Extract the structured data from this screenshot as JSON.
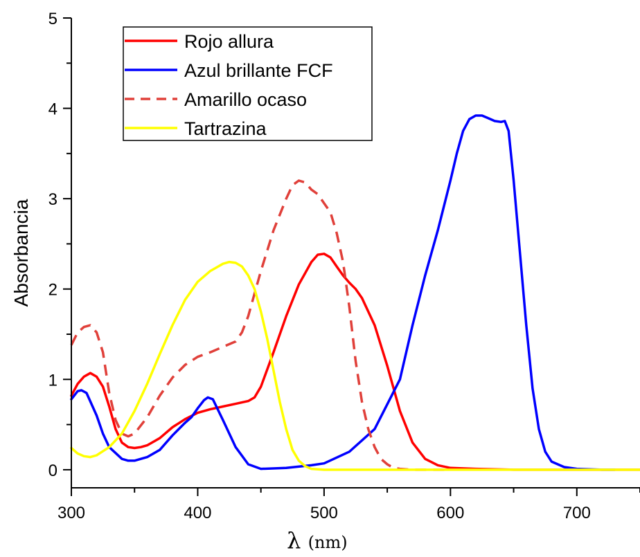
{
  "chart_data": {
    "type": "line",
    "title": "",
    "xlabel": "λ",
    "xlabel_unit": "(nm)",
    "ylabel": "Absorbancia",
    "xlim": [
      300,
      750
    ],
    "ylim": [
      -0.2,
      5
    ],
    "xticks": [
      300,
      400,
      500,
      600,
      700
    ],
    "yticks": [
      0,
      1,
      2,
      3,
      4,
      5
    ],
    "grid": false,
    "legend_position": "top-left",
    "series": [
      {
        "name": "Rojo allura",
        "color": "#ff0000",
        "dash": "solid",
        "points": [
          [
            300,
            0.82
          ],
          [
            305,
            0.95
          ],
          [
            310,
            1.03
          ],
          [
            315,
            1.07
          ],
          [
            320,
            1.03
          ],
          [
            325,
            0.92
          ],
          [
            330,
            0.7
          ],
          [
            335,
            0.45
          ],
          [
            340,
            0.3
          ],
          [
            345,
            0.25
          ],
          [
            350,
            0.24
          ],
          [
            355,
            0.25
          ],
          [
            360,
            0.27
          ],
          [
            370,
            0.35
          ],
          [
            380,
            0.47
          ],
          [
            390,
            0.56
          ],
          [
            400,
            0.63
          ],
          [
            410,
            0.67
          ],
          [
            420,
            0.7
          ],
          [
            430,
            0.73
          ],
          [
            440,
            0.76
          ],
          [
            445,
            0.8
          ],
          [
            450,
            0.92
          ],
          [
            460,
            1.3
          ],
          [
            470,
            1.7
          ],
          [
            480,
            2.05
          ],
          [
            490,
            2.3
          ],
          [
            495,
            2.38
          ],
          [
            500,
            2.39
          ],
          [
            505,
            2.35
          ],
          [
            510,
            2.25
          ],
          [
            515,
            2.15
          ],
          [
            520,
            2.07
          ],
          [
            525,
            2.0
          ],
          [
            530,
            1.9
          ],
          [
            540,
            1.6
          ],
          [
            550,
            1.15
          ],
          [
            560,
            0.65
          ],
          [
            570,
            0.3
          ],
          [
            580,
            0.12
          ],
          [
            590,
            0.05
          ],
          [
            600,
            0.02
          ],
          [
            620,
            0.01
          ],
          [
            650,
            0.0
          ],
          [
            750,
            0.0
          ]
        ]
      },
      {
        "name": "Azul brillante FCF",
        "color": "#0000ff",
        "dash": "solid",
        "points": [
          [
            300,
            0.78
          ],
          [
            305,
            0.87
          ],
          [
            308,
            0.88
          ],
          [
            312,
            0.85
          ],
          [
            320,
            0.6
          ],
          [
            325,
            0.4
          ],
          [
            330,
            0.25
          ],
          [
            340,
            0.12
          ],
          [
            345,
            0.1
          ],
          [
            350,
            0.1
          ],
          [
            360,
            0.14
          ],
          [
            370,
            0.22
          ],
          [
            380,
            0.38
          ],
          [
            390,
            0.52
          ],
          [
            395,
            0.58
          ],
          [
            400,
            0.68
          ],
          [
            405,
            0.77
          ],
          [
            408,
            0.8
          ],
          [
            412,
            0.78
          ],
          [
            420,
            0.55
          ],
          [
            430,
            0.25
          ],
          [
            440,
            0.06
          ],
          [
            450,
            0.01
          ],
          [
            470,
            0.02
          ],
          [
            490,
            0.05
          ],
          [
            500,
            0.07
          ],
          [
            520,
            0.2
          ],
          [
            540,
            0.45
          ],
          [
            560,
            1.0
          ],
          [
            570,
            1.6
          ],
          [
            580,
            2.15
          ],
          [
            590,
            2.65
          ],
          [
            600,
            3.2
          ],
          [
            605,
            3.5
          ],
          [
            610,
            3.75
          ],
          [
            615,
            3.88
          ],
          [
            620,
            3.92
          ],
          [
            625,
            3.92
          ],
          [
            630,
            3.89
          ],
          [
            635,
            3.86
          ],
          [
            640,
            3.85
          ],
          [
            643,
            3.86
          ],
          [
            646,
            3.75
          ],
          [
            650,
            3.2
          ],
          [
            655,
            2.4
          ],
          [
            660,
            1.6
          ],
          [
            665,
            0.9
          ],
          [
            670,
            0.45
          ],
          [
            675,
            0.2
          ],
          [
            680,
            0.09
          ],
          [
            690,
            0.03
          ],
          [
            700,
            0.01
          ],
          [
            720,
            0.0
          ],
          [
            730,
            0.0
          ]
        ]
      },
      {
        "name": "Amarillo ocaso",
        "color": "#e0403a",
        "dash": "dashed",
        "points": [
          [
            300,
            1.38
          ],
          [
            305,
            1.52
          ],
          [
            310,
            1.58
          ],
          [
            315,
            1.6
          ],
          [
            320,
            1.52
          ],
          [
            325,
            1.3
          ],
          [
            330,
            0.85
          ],
          [
            335,
            0.55
          ],
          [
            340,
            0.4
          ],
          [
            345,
            0.37
          ],
          [
            350,
            0.4
          ],
          [
            360,
            0.58
          ],
          [
            370,
            0.82
          ],
          [
            380,
            1.02
          ],
          [
            390,
            1.16
          ],
          [
            400,
            1.25
          ],
          [
            410,
            1.3
          ],
          [
            420,
            1.36
          ],
          [
            430,
            1.42
          ],
          [
            435,
            1.52
          ],
          [
            440,
            1.7
          ],
          [
            445,
            1.95
          ],
          [
            450,
            2.2
          ],
          [
            460,
            2.65
          ],
          [
            470,
            3.0
          ],
          [
            475,
            3.15
          ],
          [
            480,
            3.2
          ],
          [
            485,
            3.18
          ],
          [
            490,
            3.1
          ],
          [
            495,
            3.05
          ],
          [
            500,
            2.95
          ],
          [
            505,
            2.85
          ],
          [
            510,
            2.62
          ],
          [
            515,
            2.3
          ],
          [
            520,
            1.8
          ],
          [
            525,
            1.2
          ],
          [
            530,
            0.75
          ],
          [
            535,
            0.45
          ],
          [
            540,
            0.25
          ],
          [
            545,
            0.12
          ],
          [
            550,
            0.06
          ],
          [
            555,
            0.02
          ],
          [
            560,
            0.01
          ],
          [
            570,
            0.0
          ],
          [
            600,
            0.0
          ]
        ]
      },
      {
        "name": "Tartrazina",
        "color": "#ffff00",
        "dash": "solid",
        "points": [
          [
            300,
            0.24
          ],
          [
            305,
            0.18
          ],
          [
            310,
            0.15
          ],
          [
            315,
            0.14
          ],
          [
            320,
            0.16
          ],
          [
            330,
            0.25
          ],
          [
            340,
            0.4
          ],
          [
            350,
            0.65
          ],
          [
            360,
            0.95
          ],
          [
            370,
            1.28
          ],
          [
            380,
            1.6
          ],
          [
            390,
            1.88
          ],
          [
            400,
            2.08
          ],
          [
            410,
            2.2
          ],
          [
            420,
            2.28
          ],
          [
            425,
            2.3
          ],
          [
            430,
            2.29
          ],
          [
            435,
            2.25
          ],
          [
            440,
            2.15
          ],
          [
            445,
            2.0
          ],
          [
            450,
            1.75
          ],
          [
            455,
            1.45
          ],
          [
            460,
            1.1
          ],
          [
            465,
            0.75
          ],
          [
            470,
            0.45
          ],
          [
            475,
            0.22
          ],
          [
            480,
            0.1
          ],
          [
            485,
            0.04
          ],
          [
            490,
            0.01
          ],
          [
            500,
            0.0
          ],
          [
            750,
            0.0
          ]
        ]
      }
    ]
  }
}
